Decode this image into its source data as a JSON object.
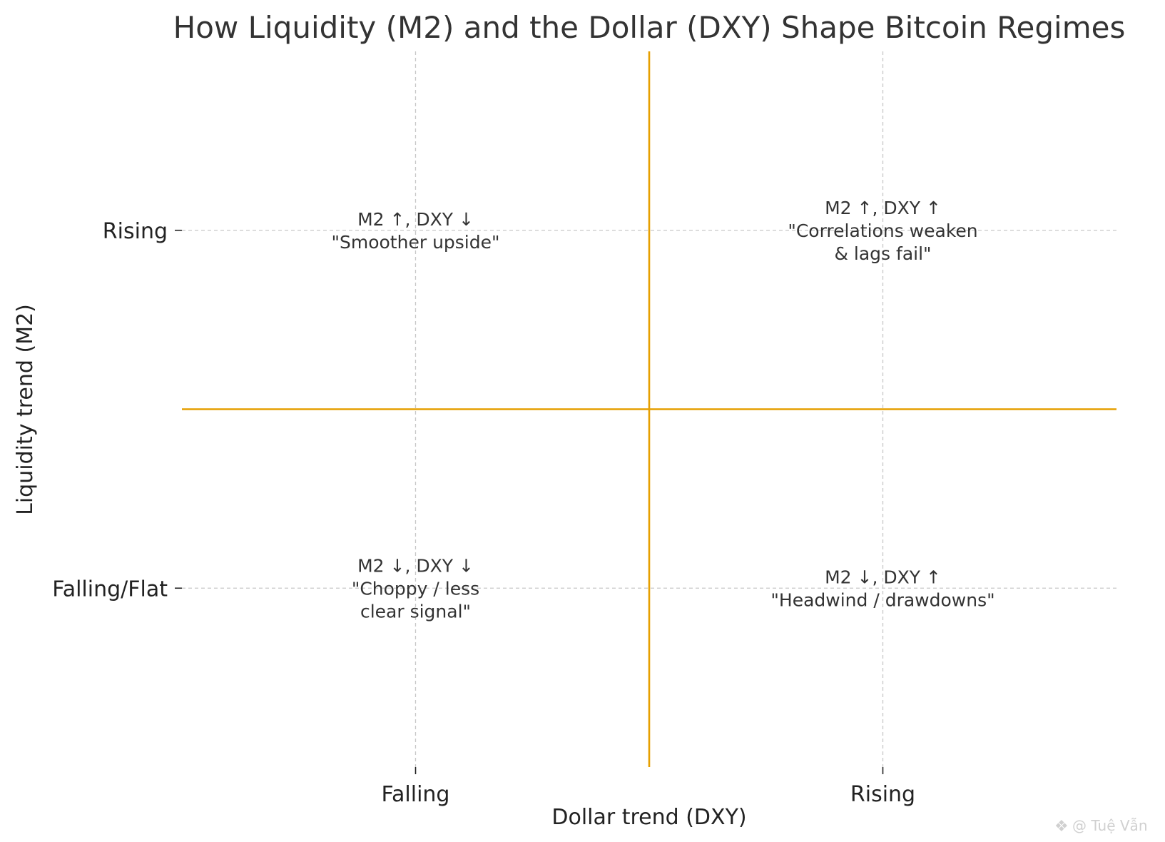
{
  "chart_data": {
    "type": "scatter",
    "title": "How Liquidity (M2) and the Dollar (DXY) Shape Bitcoin Regimes",
    "xlabel": "Dollar trend (DXY)",
    "ylabel": "Liquidity trend (M2)",
    "x_ticks": [
      "Falling",
      "Rising"
    ],
    "y_ticks": [
      "Falling/Flat",
      "Rising"
    ],
    "xlim": [
      -0.5,
      1.5
    ],
    "ylim": [
      -0.5,
      1.5
    ],
    "grid": true,
    "divider_color": "#E69F00",
    "dividers": {
      "x": 0.5,
      "y": 0.5
    },
    "annotations": [
      {
        "x": 0,
        "y": 1,
        "lines": [
          "M2 ↑, DXY ↓",
          "\"Smoother upside\""
        ]
      },
      {
        "x": 1,
        "y": 1,
        "lines": [
          "M2 ↑, DXY ↑",
          "\"Correlations weaken",
          "& lags fail\""
        ]
      },
      {
        "x": 0,
        "y": 0,
        "lines": [
          "M2 ↓, DXY ↓",
          "\"Choppy / less",
          "clear signal\""
        ]
      },
      {
        "x": 1,
        "y": 0,
        "lines": [
          "M2 ↓, DXY ↑",
          "\"Headwind / drawdowns\""
        ]
      }
    ]
  },
  "watermark": "@ Tuệ Vẫn"
}
